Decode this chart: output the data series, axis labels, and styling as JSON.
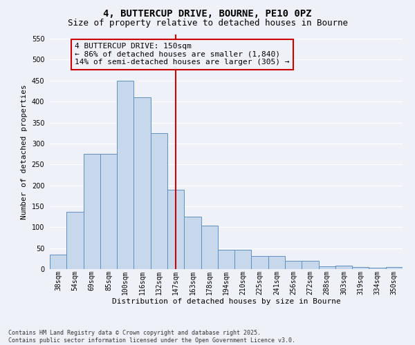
{
  "title1": "4, BUTTERCUP DRIVE, BOURNE, PE10 0PZ",
  "title2": "Size of property relative to detached houses in Bourne",
  "xlabel": "Distribution of detached houses by size in Bourne",
  "ylabel": "Number of detached properties",
  "categories": [
    "38sqm",
    "54sqm",
    "69sqm",
    "85sqm",
    "100sqm",
    "116sqm",
    "132sqm",
    "147sqm",
    "163sqm",
    "178sqm",
    "194sqm",
    "210sqm",
    "225sqm",
    "241sqm",
    "256sqm",
    "272sqm",
    "288sqm",
    "303sqm",
    "319sqm",
    "334sqm",
    "350sqm"
  ],
  "values": [
    35,
    137,
    275,
    275,
    450,
    410,
    325,
    190,
    125,
    103,
    46,
    46,
    32,
    32,
    20,
    20,
    7,
    9,
    5,
    4,
    5
  ],
  "bar_color": "#c8d8ec",
  "bar_edge_color": "#6090c0",
  "vline_x_index": 7,
  "vline_color": "#cc0000",
  "annotation_text": "4 BUTTERCUP DRIVE: 150sqm\n← 86% of detached houses are smaller (1,840)\n14% of semi-detached houses are larger (305) →",
  "annotation_box_color": "#cc0000",
  "ylim": [
    0,
    560
  ],
  "yticks": [
    0,
    50,
    100,
    150,
    200,
    250,
    300,
    350,
    400,
    450,
    500,
    550
  ],
  "background_color": "#eef2f8",
  "grid_color": "#ffffff",
  "footer_text": "Contains HM Land Registry data © Crown copyright and database right 2025.\nContains public sector information licensed under the Open Government Licence v3.0.",
  "title_fontsize": 10,
  "subtitle_fontsize": 9,
  "annotation_fontsize": 8,
  "axis_fontsize": 8,
  "tick_fontsize": 7,
  "footer_fontsize": 6
}
